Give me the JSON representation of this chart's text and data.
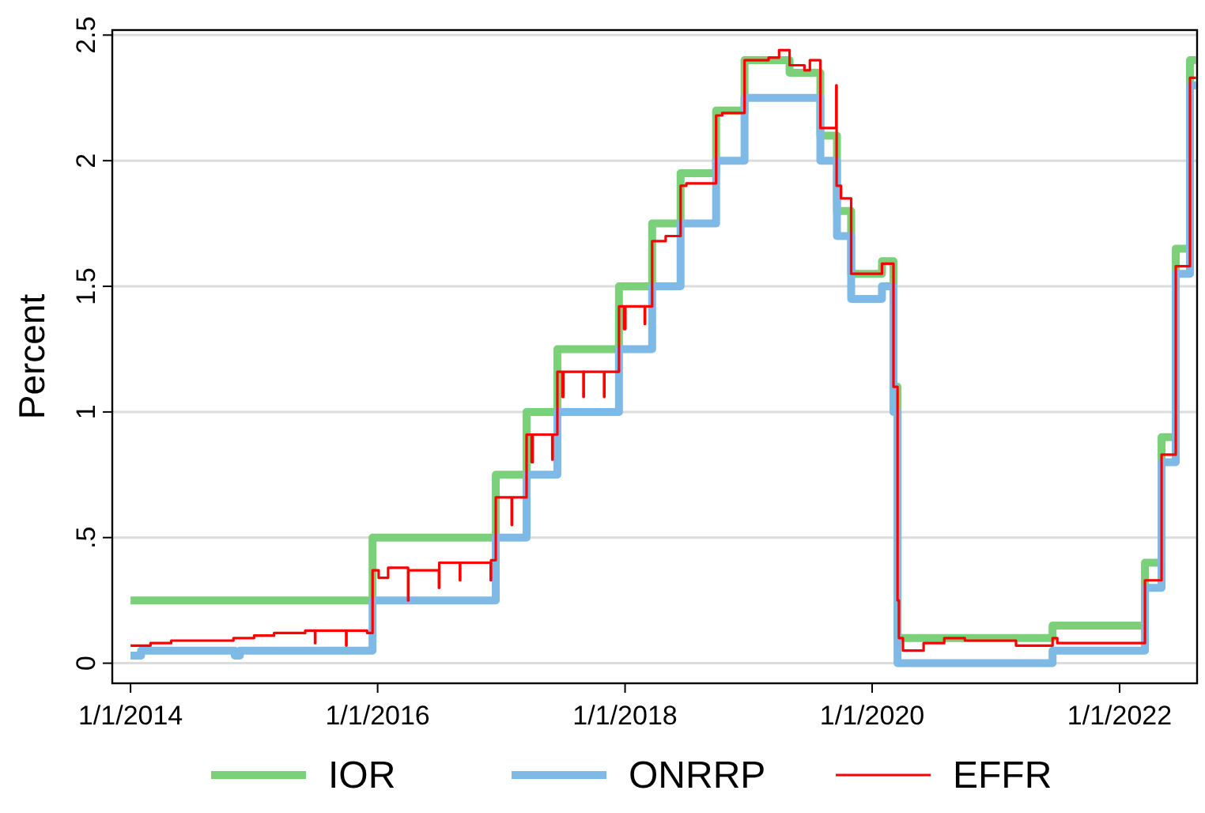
{
  "chart_data": {
    "type": "step",
    "ylabel": "Percent",
    "xlim": [
      "2013-11-08",
      "2022-08-18"
    ],
    "ylim": [
      -0.08,
      2.52
    ],
    "xticks": [
      {
        "value": "2014-01-01",
        "label": "1/1/2014"
      },
      {
        "value": "2016-01-01",
        "label": "1/1/2016"
      },
      {
        "value": "2018-01-01",
        "label": "1/1/2018"
      },
      {
        "value": "2020-01-01",
        "label": "1/1/2020"
      },
      {
        "value": "2022-01-01",
        "label": "1/1/2022"
      }
    ],
    "yticks": [
      {
        "value": 0,
        "label": "0"
      },
      {
        "value": 0.5,
        "label": ".5"
      },
      {
        "value": 1,
        "label": "1"
      },
      {
        "value": 1.5,
        "label": "1.5"
      },
      {
        "value": 2,
        "label": "2"
      },
      {
        "value": 2.5,
        "label": "2.5"
      }
    ],
    "grid": "y",
    "legend": "bottom",
    "marker": "none",
    "line_style": "solid",
    "series": [
      {
        "name": "IOR",
        "color": "#7bd07a",
        "x": [
          "2014-01-01",
          "2015-12-17",
          "2016-12-15",
          "2017-03-16",
          "2017-06-15",
          "2017-12-14",
          "2018-03-22",
          "2018-06-14",
          "2018-09-27",
          "2018-12-20",
          "2019-05-02",
          "2019-08-01",
          "2019-09-19",
          "2019-10-31",
          "2020-01-30",
          "2020-03-04",
          "2020-03-16",
          "2021-06-17",
          "2022-03-17",
          "2022-05-05",
          "2022-06-16",
          "2022-07-28",
          "2022-08-15"
        ],
        "values": [
          0.25,
          0.5,
          0.75,
          1.0,
          1.25,
          1.5,
          1.75,
          1.95,
          2.2,
          2.4,
          2.35,
          2.1,
          1.8,
          1.55,
          1.6,
          1.1,
          0.1,
          0.15,
          0.4,
          0.9,
          1.65,
          2.4,
          2.4
        ]
      },
      {
        "name": "ONRRP",
        "color": "#7fb9e6",
        "x": [
          "2014-01-01",
          "2014-02-01",
          "2014-11-05",
          "2014-11-20",
          "2015-12-17",
          "2016-12-15",
          "2017-03-16",
          "2017-06-15",
          "2017-12-14",
          "2018-03-22",
          "2018-06-14",
          "2018-09-27",
          "2018-12-20",
          "2019-08-01",
          "2019-09-19",
          "2019-10-31",
          "2020-01-30",
          "2020-03-04",
          "2020-03-16",
          "2021-06-17",
          "2022-03-17",
          "2022-05-05",
          "2022-06-16",
          "2022-07-28",
          "2022-08-15"
        ],
        "values": [
          0.03,
          0.05,
          0.03,
          0.05,
          0.25,
          0.5,
          0.75,
          1.0,
          1.25,
          1.5,
          1.75,
          2.0,
          2.25,
          2.0,
          1.7,
          1.45,
          1.5,
          1.0,
          0.0,
          0.05,
          0.3,
          0.8,
          1.55,
          2.3,
          2.3
        ]
      },
      {
        "name": "EFFR",
        "color": "#ff0000",
        "x": [
          "2014-01-01",
          "2014-03-01",
          "2014-05-01",
          "2014-09-01",
          "2014-11-01",
          "2015-01-01",
          "2015-03-01",
          "2015-06-01",
          "2015-06-30",
          "2015-07-01",
          "2015-09-30",
          "2015-10-01",
          "2015-12-01",
          "2015-12-17",
          "2016-01-04",
          "2016-02-01",
          "2016-03-31",
          "2016-04-01",
          "2016-06-30",
          "2016-07-01",
          "2016-08-31",
          "2016-09-01",
          "2016-11-30",
          "2016-12-01",
          "2016-12-15",
          "2017-01-31",
          "2017-02-01",
          "2017-03-16",
          "2017-03-31",
          "2017-04-03",
          "2017-05-31",
          "2017-06-01",
          "2017-06-15",
          "2017-06-30",
          "2017-07-03",
          "2017-08-31",
          "2017-09-01",
          "2017-10-31",
          "2017-11-01",
          "2017-12-14",
          "2017-12-29",
          "2018-01-02",
          "2018-02-28",
          "2018-03-01",
          "2018-03-22",
          "2018-05-01",
          "2018-06-14",
          "2018-07-01",
          "2018-09-27",
          "2018-10-15",
          "2018-12-20",
          "2019-02-01",
          "2019-03-01",
          "2019-04-01",
          "2019-05-02",
          "2019-06-15",
          "2019-07-01",
          "2019-08-01",
          "2019-09-17",
          "2019-09-18",
          "2019-10-01",
          "2019-10-31",
          "2020-01-30",
          "2020-03-04",
          "2020-03-16",
          "2020-03-20",
          "2020-04-01",
          "2020-06-01",
          "2020-08-01",
          "2020-10-01",
          "2021-01-01",
          "2021-03-01",
          "2021-06-17",
          "2021-07-01",
          "2022-03-17",
          "2022-05-05",
          "2022-06-16",
          "2022-07-28",
          "2022-08-15"
        ],
        "values": [
          0.07,
          0.08,
          0.09,
          0.09,
          0.1,
          0.11,
          0.12,
          0.13,
          0.08,
          0.13,
          0.07,
          0.13,
          0.12,
          0.37,
          0.34,
          0.38,
          0.25,
          0.37,
          0.3,
          0.4,
          0.33,
          0.4,
          0.33,
          0.41,
          0.66,
          0.55,
          0.66,
          0.91,
          0.8,
          0.91,
          0.81,
          0.91,
          1.16,
          1.06,
          1.16,
          1.06,
          1.16,
          1.06,
          1.16,
          1.42,
          1.33,
          1.42,
          1.35,
          1.42,
          1.68,
          1.7,
          1.9,
          1.91,
          2.18,
          2.19,
          2.4,
          2.4,
          2.41,
          2.44,
          2.38,
          2.36,
          2.4,
          2.13,
          2.3,
          1.9,
          1.85,
          1.55,
          1.59,
          1.1,
          0.25,
          0.1,
          0.05,
          0.08,
          0.1,
          0.09,
          0.09,
          0.07,
          0.1,
          0.08,
          0.33,
          0.83,
          1.58,
          2.33,
          2.33
        ]
      }
    ]
  }
}
